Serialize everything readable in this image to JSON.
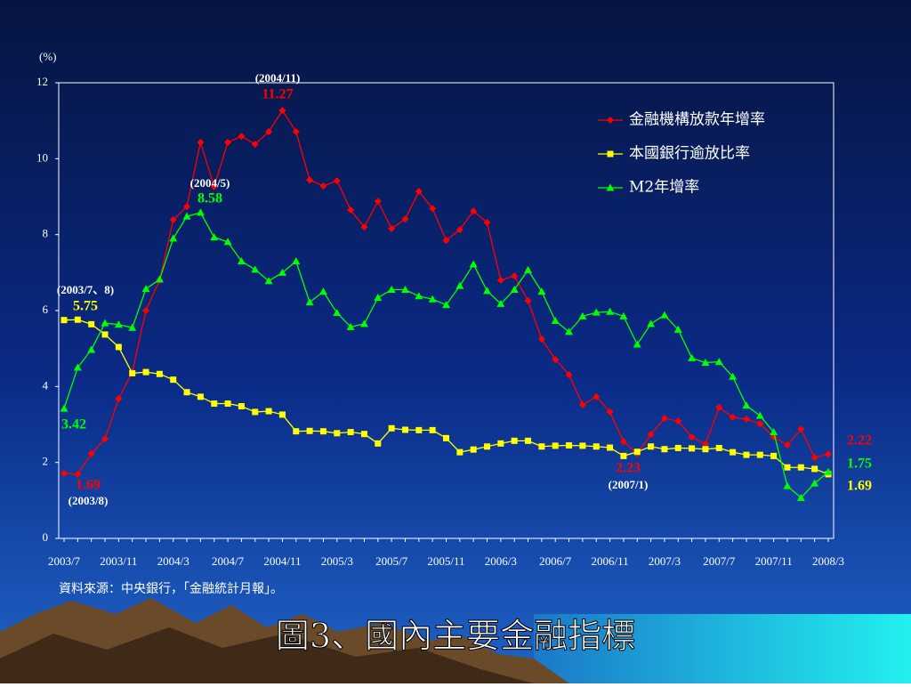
{
  "chart_data": {
    "type": "line",
    "title": "圖3、國內主要金融指標",
    "y_label": "(%)",
    "source": "資料來源：中央銀行，「金融統計月報」。",
    "categories": [
      "2003/7",
      null,
      null,
      null,
      "2003/11",
      null,
      null,
      null,
      "2004/3",
      null,
      null,
      null,
      "2004/7",
      null,
      null,
      null,
      "2004/11",
      null,
      null,
      null,
      "2005/3",
      null,
      null,
      null,
      "2005/7",
      null,
      null,
      null,
      "2005/11",
      null,
      null,
      null,
      "2006/3",
      null,
      null,
      null,
      "2006/7",
      null,
      null,
      null,
      "2006/11",
      null,
      null,
      null,
      "2007/3",
      null,
      null,
      null,
      "2007/7",
      null,
      null,
      null,
      "2007/11",
      null,
      null,
      null,
      "2008/3"
    ],
    "ylim": [
      0,
      12
    ],
    "yticks": [
      0,
      2,
      4,
      6,
      8,
      10,
      12
    ],
    "legend": "upper right",
    "annotations": [
      "(2004/11)",
      "(2004/5)",
      "(2003/7、8)",
      "(2003/8)",
      "(2007/1)"
    ],
    "series": [
      {
        "name": "金融機構放款年增率",
        "color": "#ff0000",
        "marker": "diamond",
        "values": [
          1.71,
          1.69,
          2.23,
          2.62,
          3.68,
          4.38,
          6.0,
          6.8,
          8.39,
          8.74,
          10.43,
          9.26,
          10.43,
          10.59,
          10.38,
          10.71,
          11.27,
          10.71,
          9.44,
          9.28,
          9.42,
          8.65,
          8.2,
          8.88,
          8.16,
          8.41,
          9.14,
          8.69,
          7.85,
          8.13,
          8.62,
          8.32,
          6.8,
          6.91,
          6.26,
          5.25,
          4.71,
          4.31,
          3.52,
          3.73,
          3.33,
          2.55,
          2.23,
          2.74,
          3.16,
          3.09,
          2.67,
          2.48,
          3.45,
          3.19,
          3.14,
          3.02,
          2.67,
          2.46,
          2.88,
          2.13,
          2.22
        ]
      },
      {
        "name": "本國銀行逾放比率",
        "color": "#ffff00",
        "marker": "square",
        "values": [
          5.75,
          5.76,
          5.64,
          5.37,
          5.04,
          4.35,
          4.38,
          4.33,
          4.18,
          3.85,
          3.73,
          3.55,
          3.55,
          3.48,
          3.33,
          3.35,
          3.26,
          2.82,
          2.83,
          2.82,
          2.77,
          2.8,
          2.75,
          2.5,
          2.9,
          2.86,
          2.85,
          2.85,
          2.64,
          2.27,
          2.34,
          2.42,
          2.5,
          2.57,
          2.57,
          2.42,
          2.44,
          2.45,
          2.44,
          2.42,
          2.39,
          2.17,
          2.28,
          2.42,
          2.35,
          2.38,
          2.37,
          2.35,
          2.38,
          2.27,
          2.2,
          2.2,
          2.17,
          1.87,
          1.87,
          1.83,
          1.69
        ]
      },
      {
        "name": "M2年增率",
        "color": "#00ff00",
        "marker": "triangle",
        "values": [
          3.42,
          4.5,
          4.97,
          5.67,
          5.63,
          5.55,
          6.57,
          6.82,
          7.9,
          8.48,
          8.58,
          7.93,
          7.81,
          7.3,
          7.08,
          6.78,
          7.0,
          7.3,
          6.22,
          6.5,
          5.94,
          5.57,
          5.65,
          6.34,
          6.55,
          6.55,
          6.38,
          6.3,
          6.15,
          6.65,
          7.22,
          6.52,
          6.18,
          6.55,
          7.07,
          6.5,
          5.73,
          5.44,
          5.85,
          5.95,
          5.97,
          5.85,
          5.11,
          5.65,
          5.88,
          5.5,
          4.75,
          4.63,
          4.65,
          4.26,
          3.5,
          3.23,
          2.8,
          1.38,
          1.07,
          1.45,
          1.75
        ]
      }
    ]
  }
}
